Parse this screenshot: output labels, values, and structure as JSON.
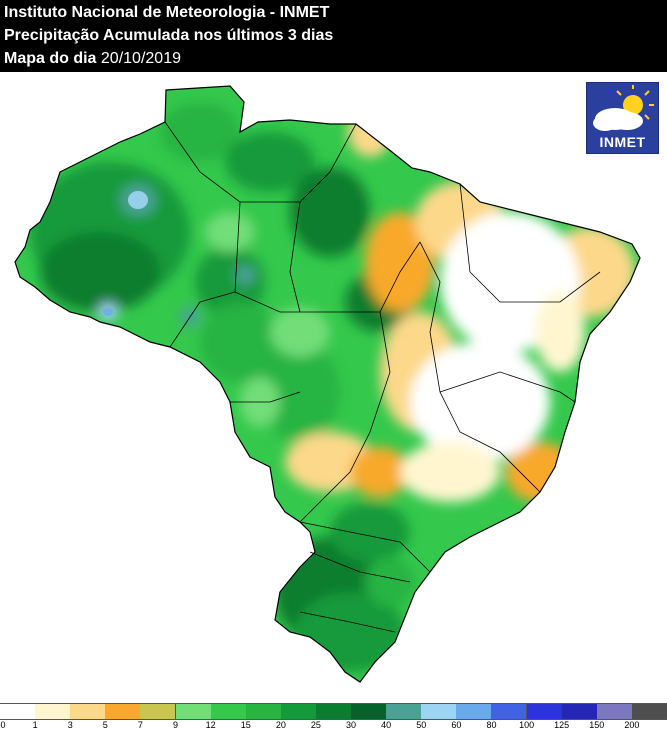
{
  "header": {
    "line1": "Instituto Nacional de Meteorologia - INMET",
    "line2": "Precipitação Acumulada nos últimos 3 dias",
    "line3_prefix": "Mapa do dia",
    "line3_date": "20/10/2019"
  },
  "logo": {
    "text": "INMET",
    "icon": "sun-cloud-icon"
  },
  "legend": {
    "colors": [
      "#ffffff",
      "#fff6d0",
      "#fcd88a",
      "#f8a92c",
      "#c8c64f",
      "#72de78",
      "#34c84c",
      "#27b443",
      "#139a3a",
      "#0a7d2f",
      "#05622a",
      "#4aa297",
      "#9dd4f4",
      "#6aa9ec",
      "#4262e6",
      "#2a34d8",
      "#2426b8",
      "#7a78be",
      "#4e4e4e"
    ],
    "ticks": [
      "0",
      "1",
      "3",
      "5",
      "7",
      "9",
      "12",
      "15",
      "20",
      "25",
      "30",
      "40",
      "50",
      "60",
      "80",
      "100",
      "125",
      "150",
      "200"
    ]
  }
}
